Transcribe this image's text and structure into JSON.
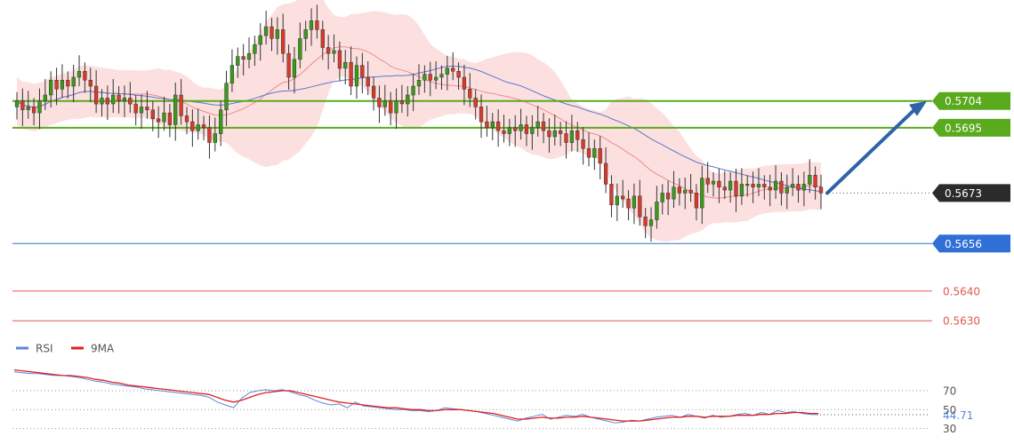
{
  "chart_data": [
    {
      "type": "candlestick",
      "price_range": [
        0.5622,
        0.5738
      ],
      "levels": [
        {
          "name": "resistance-2",
          "value": 0.5704,
          "label": "0.5704",
          "color": "#5aaa1e",
          "tag_style": "filled"
        },
        {
          "name": "resistance-1",
          "value": 0.5695,
          "label": "0.5695",
          "color": "#5aaa1e",
          "tag_style": "filled"
        },
        {
          "name": "current-price",
          "value": 0.5673,
          "label": "0.5673",
          "color": "#2b2b2b",
          "tag_style": "filled"
        },
        {
          "name": "pivot",
          "value": 0.5656,
          "label": "0.5656",
          "color": "#2f6fd6",
          "tag_style": "filled"
        },
        {
          "name": "support-1",
          "value": 0.564,
          "label": "0.5640",
          "color": "#e05a4a",
          "tag_style": "text"
        },
        {
          "name": "support-2",
          "value": 0.563,
          "label": "0.5630",
          "color": "#e05a4a",
          "tag_style": "text"
        }
      ],
      "arrow": {
        "from": 0.5673,
        "to": 0.5704,
        "color": "#2f63a8"
      },
      "colors": {
        "up": "#3a9a1a",
        "down": "#d93a2a",
        "band_fill": "#fbd6d6",
        "ma_fast": "#f08a8a",
        "ma_slow": "#5a78c8"
      },
      "closes": [
        0.5704,
        0.5701,
        0.5702,
        0.57,
        0.5704,
        0.5706,
        0.5711,
        0.5708,
        0.5711,
        0.5709,
        0.5712,
        0.5714,
        0.5711,
        0.5709,
        0.5703,
        0.5705,
        0.5703,
        0.5706,
        0.5704,
        0.5705,
        0.5703,
        0.57,
        0.5702,
        0.5701,
        0.5698,
        0.5697,
        0.57,
        0.5696,
        0.5706,
        0.5699,
        0.5697,
        0.5694,
        0.5696,
        0.5695,
        0.569,
        0.5693,
        0.5701,
        0.571,
        0.5716,
        0.5719,
        0.5718,
        0.572,
        0.5723,
        0.5726,
        0.5729,
        0.5725,
        0.5728,
        0.572,
        0.5712,
        0.5718,
        0.5725,
        0.5728,
        0.5731,
        0.5728,
        0.5722,
        0.572,
        0.5721,
        0.5715,
        0.5717,
        0.5709,
        0.5716,
        0.5712,
        0.5709,
        0.5705,
        0.5702,
        0.5704,
        0.57,
        0.5704,
        0.5703,
        0.5706,
        0.5709,
        0.5711,
        0.5713,
        0.5711,
        0.5712,
        0.5713,
        0.5715,
        0.5714,
        0.5712,
        0.5708,
        0.5705,
        0.5702,
        0.5697,
        0.5695,
        0.5697,
        0.5694,
        0.5693,
        0.5695,
        0.5694,
        0.5696,
        0.5693,
        0.5695,
        0.5697,
        0.5694,
        0.5692,
        0.5694,
        0.5693,
        0.569,
        0.5694,
        0.5691,
        0.5688,
        0.5685,
        0.5688,
        0.5683,
        0.5676,
        0.5669,
        0.5672,
        0.5671,
        0.5668,
        0.5672,
        0.5665,
        0.5662,
        0.5664,
        0.567,
        0.5673,
        0.5671,
        0.5675,
        0.5673,
        0.5674,
        0.5673,
        0.5668,
        0.5678,
        0.5676,
        0.5677,
        0.5675,
        0.5674,
        0.5677,
        0.5672,
        0.5676,
        0.5676,
        0.5675,
        0.5676,
        0.5675,
        0.5674,
        0.5677,
        0.5673,
        0.5675,
        0.5676,
        0.5674,
        0.5676,
        0.5679,
        0.5675,
        0.5673
      ],
      "opens": [
        0.5702,
        0.5704,
        0.5701,
        0.5702,
        0.57,
        0.5704,
        0.5706,
        0.5711,
        0.5708,
        0.5711,
        0.5709,
        0.5712,
        0.5714,
        0.5711,
        0.5709,
        0.5703,
        0.5705,
        0.5703,
        0.5706,
        0.5704,
        0.5705,
        0.5703,
        0.57,
        0.5702,
        0.5701,
        0.5698,
        0.5697,
        0.57,
        0.5696,
        0.5706,
        0.5699,
        0.5697,
        0.5694,
        0.5696,
        0.5695,
        0.569,
        0.5693,
        0.5701,
        0.571,
        0.5716,
        0.5719,
        0.5718,
        0.572,
        0.5723,
        0.5726,
        0.5729,
        0.5725,
        0.5728,
        0.572,
        0.5712,
        0.5718,
        0.5725,
        0.5728,
        0.5731,
        0.5728,
        0.5722,
        0.572,
        0.5721,
        0.5715,
        0.5717,
        0.5709,
        0.5716,
        0.5712,
        0.5709,
        0.5705,
        0.5702,
        0.5704,
        0.57,
        0.5704,
        0.5703,
        0.5706,
        0.5709,
        0.5711,
        0.5713,
        0.5711,
        0.5712,
        0.5713,
        0.5715,
        0.5714,
        0.5712,
        0.5708,
        0.5705,
        0.5702,
        0.5697,
        0.5695,
        0.5697,
        0.5694,
        0.5693,
        0.5695,
        0.5694,
        0.5696,
        0.5693,
        0.5695,
        0.5697,
        0.5694,
        0.5692,
        0.5694,
        0.5693,
        0.569,
        0.5694,
        0.5691,
        0.5688,
        0.5685,
        0.5688,
        0.5683,
        0.5676,
        0.5669,
        0.5672,
        0.5671,
        0.5668,
        0.5672,
        0.5665,
        0.5662,
        0.5664,
        0.567,
        0.5673,
        0.5671,
        0.5675,
        0.5673,
        0.5674,
        0.5673,
        0.5668,
        0.5678,
        0.5676,
        0.5677,
        0.5675,
        0.5674,
        0.5677,
        0.5672,
        0.5676,
        0.5676,
        0.5675,
        0.5676,
        0.5675,
        0.5674,
        0.5677,
        0.5673,
        0.5675,
        0.5676,
        0.5674,
        0.5676,
        0.5679,
        0.5675
      ]
    },
    {
      "type": "line",
      "legend": [
        {
          "name": "RSI",
          "color": "#5a86d8"
        },
        {
          "name": "9MA",
          "color": "#e02020"
        }
      ],
      "ylim": [
        25,
        100
      ],
      "ticks": [
        {
          "label": "70",
          "value": 70
        },
        {
          "label": "50",
          "value": 50
        },
        {
          "label": "30",
          "value": 30
        }
      ],
      "current_label": "44.71",
      "current_value": 44.71,
      "rsi": [
        90,
        89,
        88,
        88,
        87,
        86,
        86,
        85,
        84,
        82,
        80,
        79,
        77,
        76,
        75,
        74,
        72,
        71,
        70,
        69,
        68,
        67,
        66,
        65,
        63,
        58,
        55,
        52,
        62,
        68,
        70,
        71,
        70,
        71,
        69,
        66,
        64,
        60,
        57,
        55,
        56,
        52,
        58,
        54,
        53,
        52,
        51,
        50,
        50,
        49,
        49,
        48,
        49,
        52,
        51,
        50,
        49,
        48,
        46,
        44,
        42,
        40,
        38,
        41,
        43,
        45,
        40,
        42,
        44,
        43,
        45,
        42,
        40,
        38,
        36,
        37,
        39,
        38,
        40,
        42,
        43,
        44,
        42,
        45,
        43,
        41,
        44,
        42,
        43,
        45,
        46,
        44,
        47,
        45,
        49,
        47,
        48,
        46,
        45,
        44.71
      ],
      "ma": [
        92,
        91,
        90,
        89,
        88,
        87,
        86,
        86,
        85,
        84,
        82,
        81,
        79,
        78,
        76,
        75,
        74,
        73,
        72,
        71,
        70,
        69,
        68,
        67,
        66,
        63,
        60,
        58,
        60,
        63,
        66,
        68,
        69,
        70,
        70,
        68,
        66,
        64,
        62,
        60,
        58,
        57,
        56,
        55,
        54,
        53,
        52,
        52,
        51,
        50,
        50,
        49,
        49,
        50,
        50,
        50,
        49,
        48,
        47,
        46,
        44,
        42,
        40,
        40,
        41,
        42,
        41,
        41,
        42,
        42,
        43,
        42,
        41,
        40,
        39,
        38,
        38,
        38,
        39,
        40,
        41,
        42,
        42,
        43,
        43,
        42,
        43,
        43,
        43,
        44,
        44,
        44,
        45,
        45,
        46,
        46,
        47,
        47,
        46,
        46
      ]
    }
  ]
}
